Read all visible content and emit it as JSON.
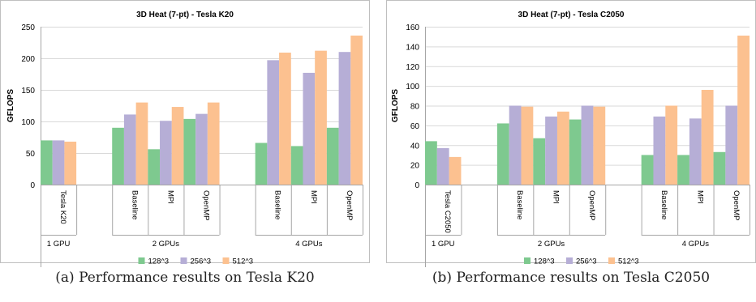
{
  "colors": {
    "s128": "#7ec98f",
    "s256": "#b6aed6",
    "s512": "#fcc190"
  },
  "chart_data": [
    {
      "type": "bar",
      "title": "3D Heat (7-pt) - Tesla K20",
      "ylabel": "GFLOPS",
      "ylim": [
        0,
        250
      ],
      "yticks": [
        0,
        50,
        100,
        150,
        200,
        250
      ],
      "legend": "bottom",
      "grid": true,
      "groups": [
        {
          "label": "1 GPU",
          "categories": [
            "Tesla K20"
          ]
        },
        {
          "label": "2 GPUs",
          "categories": [
            "Baseline",
            "MPI",
            "OpenMP"
          ]
        },
        {
          "label": "4 GPUs",
          "categories": [
            "Baseline",
            "MPI",
            "OpenMP"
          ]
        }
      ],
      "series": [
        {
          "name": "128^3",
          "values": [
            70,
            90,
            56,
            104,
            66,
            61,
            90
          ]
        },
        {
          "name": "256^3",
          "values": [
            70,
            111,
            101,
            112,
            197,
            177,
            210
          ]
        },
        {
          "name": "512^3",
          "values": [
            68,
            130,
            123,
            130,
            209,
            212,
            236
          ]
        }
      ]
    },
    {
      "type": "bar",
      "title": "3D Heat (7-pt) - Tesla C2050",
      "ylabel": "GFLOPS",
      "ylim": [
        0,
        160
      ],
      "yticks": [
        0,
        20,
        40,
        60,
        80,
        100,
        120,
        140,
        160
      ],
      "legend": "bottom",
      "grid": true,
      "groups": [
        {
          "label": "1 GPU",
          "categories": [
            "Tesla C2050"
          ]
        },
        {
          "label": "2 GPUs",
          "categories": [
            "Baseline",
            "MPI",
            "OpenMP"
          ]
        },
        {
          "label": "4 GPUs",
          "categories": [
            "Baseline",
            "MPI",
            "OpenMP"
          ]
        }
      ],
      "series": [
        {
          "name": "128^3",
          "values": [
            44,
            62,
            47,
            66,
            30,
            30,
            33
          ]
        },
        {
          "name": "256^3",
          "values": [
            37,
            80,
            69,
            80,
            69,
            67,
            80
          ]
        },
        {
          "name": "512^3",
          "values": [
            28,
            79,
            74,
            79,
            80,
            96,
            151
          ]
        }
      ]
    }
  ],
  "captions": {
    "a": "(a)  Performance results on Tesla K20",
    "b": "(b)  Performance results on Tesla C2050"
  }
}
